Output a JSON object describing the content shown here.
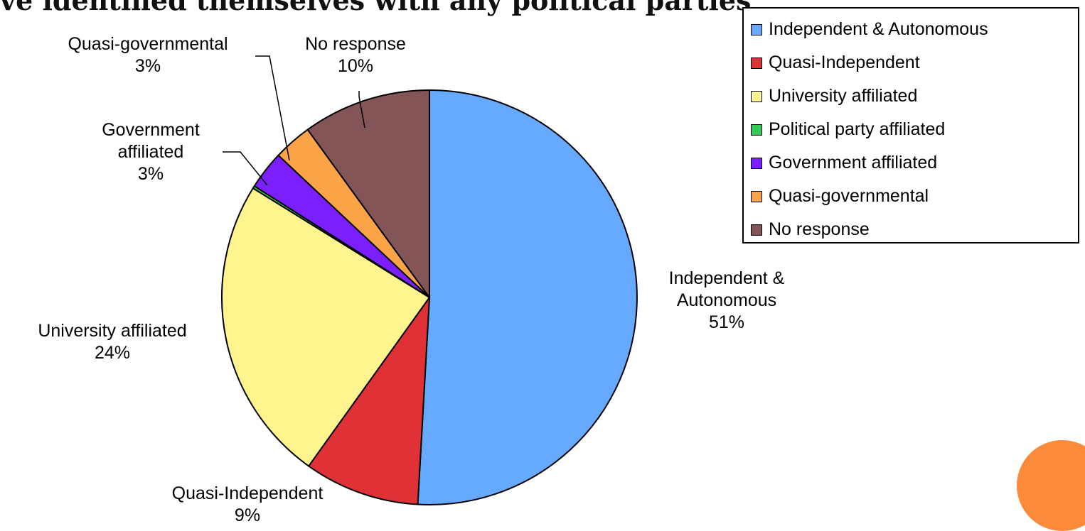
{
  "slide": {
    "title": "ve identified themselves with any political parties"
  },
  "chart_data": {
    "type": "pie",
    "title": "",
    "slices": [
      {
        "name": "Independent & Autonomous",
        "value": 51,
        "label": "Independent & Autonomous 51%",
        "label_lines": [
          "Independent &",
          "Autonomous",
          "51%"
        ],
        "color": "#66aaff"
      },
      {
        "name": "Quasi-Independent",
        "value": 9,
        "label": "Quasi-Independent 9%",
        "label_lines": [
          "Quasi-Independent",
          "9%"
        ],
        "color": "#e03236"
      },
      {
        "name": "University affiliated",
        "value": 24,
        "label": "University affiliated 24%",
        "label_lines": [
          "University affiliated",
          "24%"
        ],
        "color": "#fff48e"
      },
      {
        "name": "Political party affiliated",
        "value": 0.2,
        "label": "",
        "label_lines": [],
        "color": "#33cc55"
      },
      {
        "name": "Government affiliated",
        "value": 3,
        "label": "Government affiliated 3%",
        "label_lines": [
          "Government",
          "affiliated",
          "3%"
        ],
        "color": "#7b1fff"
      },
      {
        "name": "Quasi-governmental",
        "value": 3,
        "label": "Quasi-governmental 3%",
        "label_lines": [
          "Quasi-governmental",
          "3%"
        ],
        "color": "#fba347"
      },
      {
        "name": "No response",
        "value": 10,
        "label": "No response 10%",
        "label_lines": [
          "No response",
          "10%"
        ],
        "color": "#845556"
      }
    ],
    "legend": {
      "placement": "top-right",
      "entries": [
        "Independent & Autonomous",
        "Quasi-Independent",
        "University affiliated",
        "Political party affiliated",
        "Government affiliated",
        "Quasi-governmental",
        "No response"
      ]
    }
  },
  "decoration": {
    "accent_color": "#fb8a3a"
  }
}
